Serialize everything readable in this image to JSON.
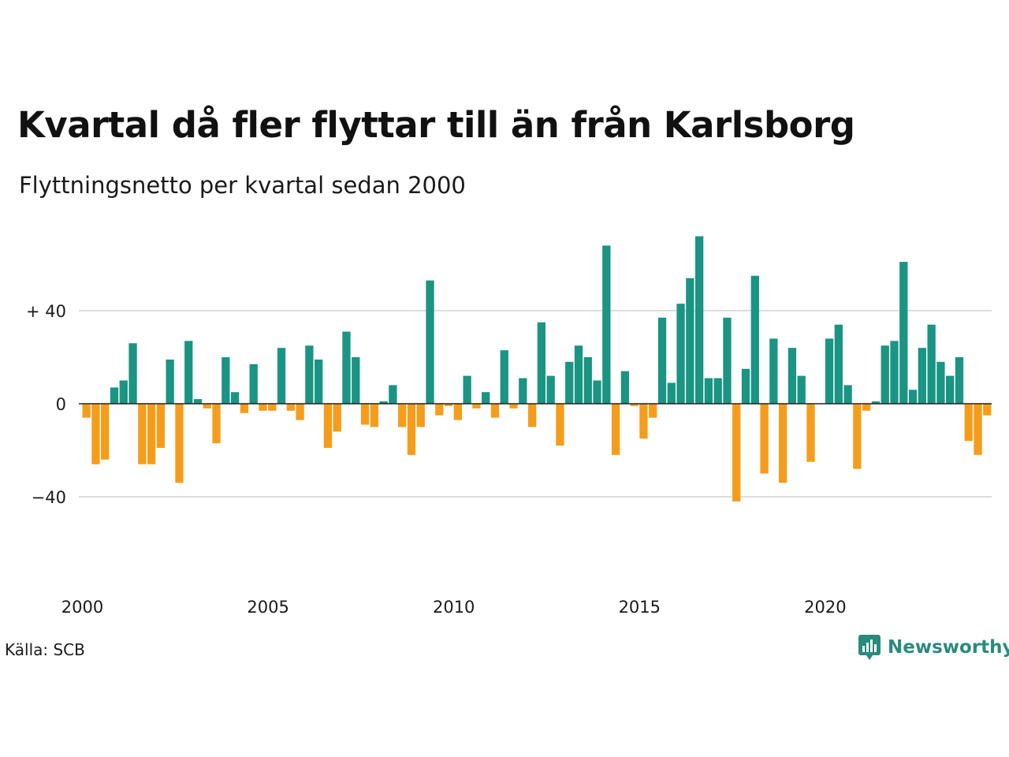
{
  "title": "Kvartal då fler flyttar till än från Karlsborg",
  "subtitle": "Flyttningsnetto per kvartal sedan 2000",
  "source": "Källa: SCB",
  "brand": "Newsworthy",
  "colors": {
    "positive": "#1a9483",
    "negative": "#f59d1b",
    "grid": "#dcdcdc",
    "zero": "#222222",
    "brand": "#2a8a7e"
  },
  "chart_data": {
    "type": "bar",
    "x_start": "2000 Q1",
    "periods_per_year": 4,
    "ylim": [
      -62,
      72
    ],
    "y_ticks": [
      {
        "value": 40,
        "label": "+ 40"
      },
      {
        "value": 0,
        "label": "0"
      },
      {
        "value": -40,
        "label": "−40"
      }
    ],
    "x_ticks": [
      {
        "year": 2000,
        "label": "2000"
      },
      {
        "year": 2005,
        "label": "2005"
      },
      {
        "year": 2010,
        "label": "2010"
      },
      {
        "year": 2015,
        "label": "2015"
      },
      {
        "year": 2020,
        "label": "2020"
      }
    ],
    "values": [
      -6,
      -26,
      -24,
      7,
      10,
      26,
      -26,
      -26,
      -19,
      19,
      -34,
      27,
      2,
      -2,
      -17,
      20,
      5,
      -4,
      17,
      -3,
      -3,
      24,
      -3,
      -7,
      25,
      19,
      -19,
      -12,
      31,
      20,
      -9,
      -10,
      1,
      8,
      -10,
      -22,
      -10,
      53,
      -5,
      -1,
      -7,
      12,
      -2,
      5,
      -6,
      23,
      -2,
      11,
      -10,
      35,
      12,
      -18,
      18,
      25,
      20,
      10,
      68,
      -22,
      14,
      -1,
      -15,
      -6,
      37,
      9,
      43,
      54,
      72,
      11,
      11,
      37,
      -42,
      15,
      55,
      -30,
      28,
      -34,
      24,
      12,
      -25,
      0,
      28,
      34,
      8,
      -28,
      -3,
      1,
      25,
      27,
      61,
      6,
      24,
      34,
      18,
      12,
      20,
      -16,
      -22,
      -5
    ]
  }
}
